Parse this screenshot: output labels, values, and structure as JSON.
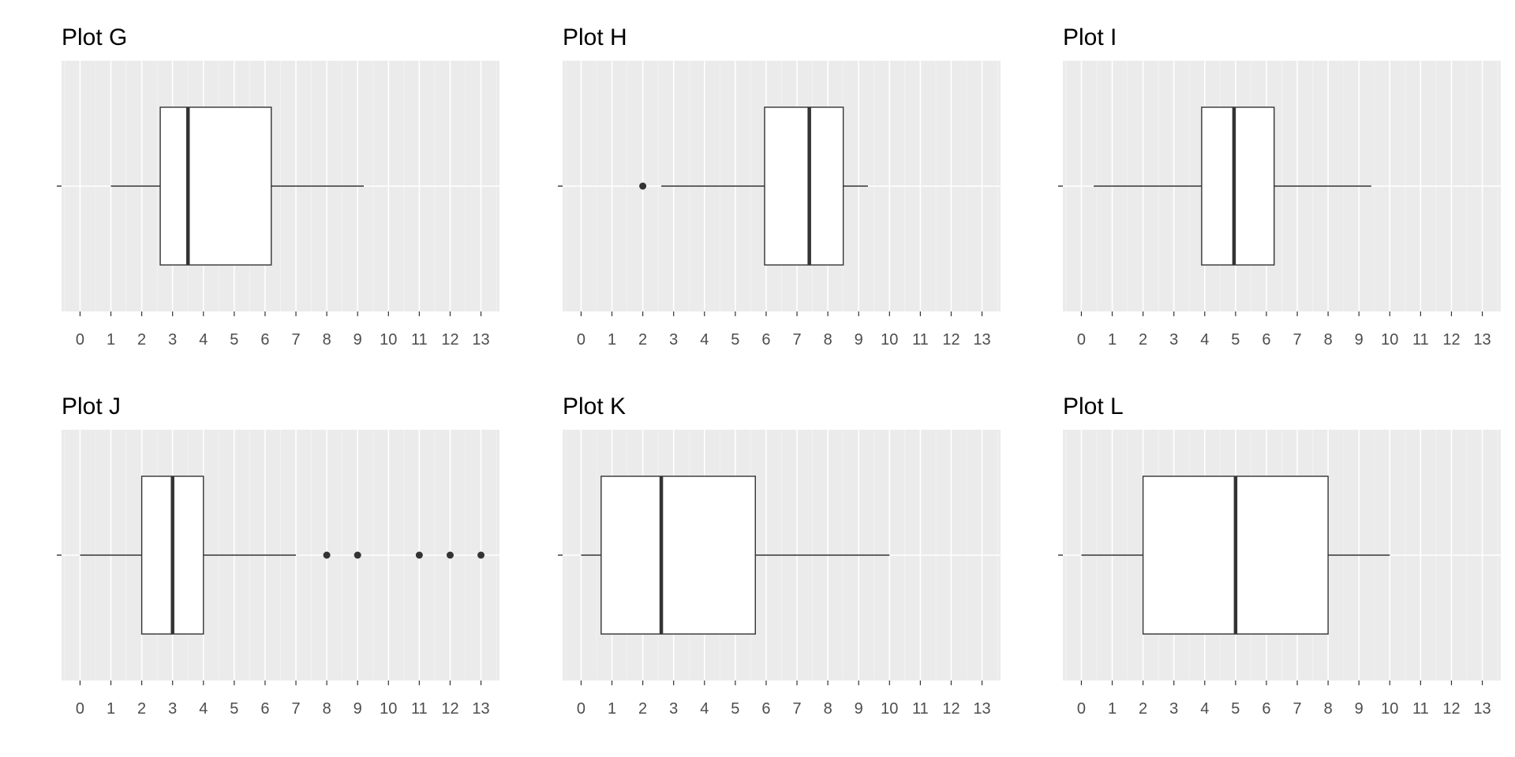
{
  "chart_data": [
    {
      "type": "boxplot",
      "title": "Plot G",
      "xlim": [
        -0.6,
        13.6
      ],
      "x_ticks": [
        "0",
        "1",
        "2",
        "3",
        "4",
        "5",
        "6",
        "7",
        "8",
        "9",
        "10",
        "11",
        "12",
        "13"
      ],
      "box": {
        "whisker_low": 1.0,
        "q1": 2.6,
        "median": 3.5,
        "q3": 6.2,
        "whisker_high": 9.2
      },
      "outliers": []
    },
    {
      "type": "boxplot",
      "title": "Plot H",
      "xlim": [
        -0.6,
        13.6
      ],
      "x_ticks": [
        "0",
        "1",
        "2",
        "3",
        "4",
        "5",
        "6",
        "7",
        "8",
        "9",
        "10",
        "11",
        "12",
        "13"
      ],
      "box": {
        "whisker_low": 2.6,
        "q1": 5.95,
        "median": 7.4,
        "q3": 8.5,
        "whisker_high": 9.3
      },
      "outliers": [
        2.0
      ]
    },
    {
      "type": "boxplot",
      "title": "Plot I",
      "xlim": [
        -0.6,
        13.6
      ],
      "x_ticks": [
        "0",
        "1",
        "2",
        "3",
        "4",
        "5",
        "6",
        "7",
        "8",
        "9",
        "10",
        "11",
        "12",
        "13"
      ],
      "box": {
        "whisker_low": 0.4,
        "q1": 3.9,
        "median": 4.95,
        "q3": 6.25,
        "whisker_high": 9.4
      },
      "outliers": []
    },
    {
      "type": "boxplot",
      "title": "Plot J",
      "xlim": [
        -0.6,
        13.6
      ],
      "x_ticks": [
        "0",
        "1",
        "2",
        "3",
        "4",
        "5",
        "6",
        "7",
        "8",
        "9",
        "10",
        "11",
        "12",
        "13"
      ],
      "box": {
        "whisker_low": 0.0,
        "q1": 2.0,
        "median": 3.0,
        "q3": 4.0,
        "whisker_high": 7.0
      },
      "outliers": [
        8,
        9,
        11,
        12,
        13
      ]
    },
    {
      "type": "boxplot",
      "title": "Plot K",
      "xlim": [
        -0.6,
        13.6
      ],
      "x_ticks": [
        "0",
        "1",
        "2",
        "3",
        "4",
        "5",
        "6",
        "7",
        "8",
        "9",
        "10",
        "11",
        "12",
        "13"
      ],
      "box": {
        "whisker_low": 0.0,
        "q1": 0.65,
        "median": 2.6,
        "q3": 5.65,
        "whisker_high": 10.0
      },
      "outliers": []
    },
    {
      "type": "boxplot",
      "title": "Plot L",
      "xlim": [
        -0.6,
        13.6
      ],
      "x_ticks": [
        "0",
        "1",
        "2",
        "3",
        "4",
        "5",
        "6",
        "7",
        "8",
        "9",
        "10",
        "11",
        "12",
        "13"
      ],
      "box": {
        "whisker_low": 0.0,
        "q1": 2.0,
        "median": 5.0,
        "q3": 8.0,
        "whisker_high": 10.0
      },
      "outliers": []
    }
  ],
  "colors": {
    "panel_background": "#ebebeb",
    "grid_major": "#ffffff",
    "grid_minor": "#f2f2f2",
    "box_fill": "#ffffff",
    "box_stroke": "#333333",
    "tick_text": "#4d4d4d",
    "title_text": "#000000"
  }
}
